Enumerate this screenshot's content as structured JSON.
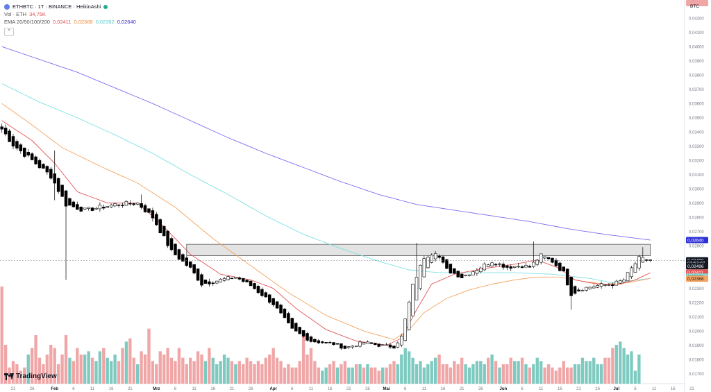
{
  "header": {
    "symbol_line": "ETHBTC · 1T · BINANCE · HeikinAshi",
    "vol_label": "Vol · ETH",
    "vol_value": "34,75K",
    "ema_label": "EMA 20/50/100/200",
    "ema_values": [
      "0,02411",
      "0,02368",
      "0,02382",
      "0,02640"
    ],
    "collapse_glyph": "^",
    "currency": "BTC",
    "logo_text": "TradingView"
  },
  "colors": {
    "up": "#ffffff",
    "down": "#000000",
    "candle_border": "#000000",
    "vol_up": "#7ecac0",
    "vol_down": "#f0a6a6",
    "ema20": "#e45454",
    "ema50": "#f4a460",
    "ema100": "#7fe0e0",
    "ema200": "#7b6ff0",
    "box_fill": "#d9d9d9",
    "text_red": "#e04a4a"
  },
  "chart_data": {
    "type": "candlestick",
    "price_axis": {
      "min": 0.0163,
      "max": 0.0425
    },
    "y_ticks": [
      "0,04200",
      "0,04100",
      "0,04000",
      "0,03900",
      "0,03800",
      "0,03700",
      "0,03600",
      "0,03500",
      "0,03400",
      "0,03300",
      "0,03200",
      "0,03100",
      "0,03000",
      "0,02900",
      "0,02800",
      "0,02700",
      "0,02600",
      "0,02500",
      "0,02400",
      "0,02300",
      "0,02200",
      "0,02100",
      "0,02000",
      "0,01900",
      "0,01800",
      "0,01700"
    ],
    "x_ticks": [
      {
        "label": "21",
        "i": 3
      },
      {
        "label": "26",
        "i": 8
      },
      {
        "label": "Feb",
        "i": 14
      },
      {
        "label": "6",
        "i": 19
      },
      {
        "label": "11",
        "i": 24
      },
      {
        "label": "16",
        "i": 29
      },
      {
        "label": "21",
        "i": 34
      },
      {
        "label": "Mrz",
        "i": 41
      },
      {
        "label": "6",
        "i": 46
      },
      {
        "label": "11",
        "i": 51
      },
      {
        "label": "16",
        "i": 56
      },
      {
        "label": "21",
        "i": 61
      },
      {
        "label": "26",
        "i": 66
      },
      {
        "label": "Apr",
        "i": 72
      },
      {
        "label": "6",
        "i": 77
      },
      {
        "label": "11",
        "i": 82
      },
      {
        "label": "16",
        "i": 87
      },
      {
        "label": "21",
        "i": 92
      },
      {
        "label": "26",
        "i": 97
      },
      {
        "label": "Mai",
        "i": 102
      },
      {
        "label": "6",
        "i": 107
      },
      {
        "label": "11",
        "i": 112
      },
      {
        "label": "16",
        "i": 117
      },
      {
        "label": "21",
        "i": 122
      },
      {
        "label": "26",
        "i": 127
      },
      {
        "label": "Jun",
        "i": 133
      },
      {
        "label": "6",
        "i": 138
      },
      {
        "label": "11",
        "i": 143
      },
      {
        "label": "16",
        "i": 148
      },
      {
        "label": "21",
        "i": 153
      },
      {
        "label": "26",
        "i": 158
      },
      {
        "label": "Jul",
        "i": 163
      },
      {
        "label": "6",
        "i": 168
      },
      {
        "label": "11",
        "i": 173
      },
      {
        "label": "16",
        "i": 178
      },
      {
        "label": "21",
        "i": 183
      }
    ],
    "close_anchors": [
      [
        0,
        0.0342
      ],
      [
        3,
        0.0331
      ],
      [
        8,
        0.032
      ],
      [
        13,
        0.0309
      ],
      [
        17,
        0.0289
      ],
      [
        22,
        0.0285
      ],
      [
        30,
        0.0289
      ],
      [
        36,
        0.029
      ],
      [
        40,
        0.028
      ],
      [
        45,
        0.0256
      ],
      [
        50,
        0.0244
      ],
      [
        53,
        0.0233
      ],
      [
        58,
        0.0236
      ],
      [
        62,
        0.0238
      ],
      [
        66,
        0.0232
      ],
      [
        72,
        0.0219
      ],
      [
        77,
        0.0201
      ],
      [
        82,
        0.0193
      ],
      [
        88,
        0.0191
      ],
      [
        91,
        0.0188
      ],
      [
        96,
        0.0192
      ],
      [
        100,
        0.019
      ],
      [
        104,
        0.0189
      ],
      [
        106,
        0.0196
      ],
      [
        109,
        0.0232
      ],
      [
        112,
        0.0252
      ],
      [
        115,
        0.0256
      ],
      [
        118,
        0.0243
      ],
      [
        122,
        0.0238
      ],
      [
        127,
        0.0245
      ],
      [
        130,
        0.0249
      ],
      [
        134,
        0.0245
      ],
      [
        138,
        0.0246
      ],
      [
        140,
        0.0245
      ],
      [
        143,
        0.0253
      ],
      [
        146,
        0.0249
      ],
      [
        149,
        0.0241
      ],
      [
        151,
        0.0226
      ],
      [
        154,
        0.023
      ],
      [
        158,
        0.0232
      ],
      [
        162,
        0.0233
      ],
      [
        165,
        0.0236
      ],
      [
        167,
        0.0244
      ],
      [
        169,
        0.0251
      ],
      [
        172,
        0.025
      ]
    ],
    "spikes": [
      {
        "i": 14,
        "high": 0.0327,
        "low": 0.0292
      },
      {
        "i": 17,
        "low": 0.0236
      },
      {
        "i": 37,
        "high": 0.0296
      },
      {
        "i": 110,
        "high": 0.0262
      },
      {
        "i": 141,
        "high": 0.0263
      },
      {
        "i": 151,
        "low": 0.0215
      },
      {
        "i": 170,
        "high": 0.0259
      }
    ],
    "volume": [
      60,
      24,
      10,
      14,
      12,
      8,
      10,
      18,
      22,
      30,
      16,
      12,
      18,
      24,
      22,
      12,
      18,
      30,
      16,
      14,
      22,
      18,
      18,
      20,
      16,
      14,
      20,
      22,
      16,
      14,
      18,
      14,
      22,
      26,
      28,
      16,
      12,
      20,
      18,
      34,
      14,
      12,
      20,
      18,
      22,
      16,
      14,
      22,
      16,
      12,
      16,
      14,
      20,
      18,
      14,
      22,
      16,
      12,
      14,
      18,
      16,
      14,
      12,
      14,
      12,
      16,
      14,
      12,
      14,
      12,
      16,
      18,
      22,
      16,
      14,
      10,
      12,
      10,
      10,
      14,
      30,
      18,
      22,
      14,
      10,
      8,
      10,
      12,
      14,
      10,
      12,
      14,
      10,
      10,
      12,
      12,
      10,
      12,
      10,
      10,
      8,
      10,
      10,
      12,
      14,
      12,
      18,
      22,
      20,
      16,
      12,
      14,
      10,
      12,
      14,
      16,
      18,
      12,
      12,
      10,
      14,
      12,
      16,
      12,
      10,
      12,
      14,
      14,
      12,
      16,
      18,
      14,
      10,
      12,
      12,
      16,
      14,
      14,
      16,
      12,
      10,
      12,
      16,
      14,
      10,
      12,
      10,
      8,
      10,
      14,
      10,
      10,
      12,
      12,
      16,
      14,
      14,
      16,
      12,
      12,
      16,
      16,
      22,
      24,
      26,
      22,
      18,
      20,
      8,
      18
    ],
    "ema200": [
      [
        0,
        0.04
      ],
      [
        10,
        0.0391
      ],
      [
        20,
        0.0382
      ],
      [
        30,
        0.0371
      ],
      [
        40,
        0.036
      ],
      [
        50,
        0.0348
      ],
      [
        60,
        0.0336
      ],
      [
        70,
        0.0325
      ],
      [
        80,
        0.0315
      ],
      [
        90,
        0.0305
      ],
      [
        100,
        0.0296
      ],
      [
        110,
        0.0289
      ],
      [
        120,
        0.0285
      ],
      [
        130,
        0.0281
      ],
      [
        140,
        0.0277
      ],
      [
        150,
        0.0272
      ],
      [
        160,
        0.0268
      ],
      [
        172,
        0.0264
      ]
    ],
    "ema100": [
      [
        0,
        0.0374
      ],
      [
        10,
        0.0361
      ],
      [
        20,
        0.035
      ],
      [
        30,
        0.0338
      ],
      [
        40,
        0.0325
      ],
      [
        50,
        0.031
      ],
      [
        60,
        0.0296
      ],
      [
        70,
        0.0281
      ],
      [
        80,
        0.0268
      ],
      [
        90,
        0.0258
      ],
      [
        100,
        0.0249
      ],
      [
        108,
        0.0243
      ],
      [
        116,
        0.0241
      ],
      [
        126,
        0.0241
      ],
      [
        136,
        0.0241
      ],
      [
        146,
        0.024
      ],
      [
        156,
        0.0237
      ],
      [
        162,
        0.0234
      ],
      [
        172,
        0.0237
      ]
    ],
    "ema50": [
      [
        0,
        0.036
      ],
      [
        8,
        0.0345
      ],
      [
        16,
        0.0329
      ],
      [
        26,
        0.0316
      ],
      [
        36,
        0.0304
      ],
      [
        46,
        0.0287
      ],
      [
        56,
        0.0265
      ],
      [
        66,
        0.0246
      ],
      [
        76,
        0.0227
      ],
      [
        86,
        0.0211
      ],
      [
        96,
        0.02
      ],
      [
        104,
        0.0194
      ],
      [
        108,
        0.0201
      ],
      [
        112,
        0.0213
      ],
      [
        118,
        0.0223
      ],
      [
        124,
        0.0229
      ],
      [
        130,
        0.0233
      ],
      [
        136,
        0.0236
      ],
      [
        142,
        0.0238
      ],
      [
        148,
        0.0238
      ],
      [
        154,
        0.0235
      ],
      [
        160,
        0.0233
      ],
      [
        166,
        0.0234
      ],
      [
        172,
        0.0237
      ]
    ],
    "ema20": [
      [
        0,
        0.0348
      ],
      [
        8,
        0.0334
      ],
      [
        14,
        0.0318
      ],
      [
        20,
        0.0298
      ],
      [
        28,
        0.029
      ],
      [
        36,
        0.029
      ],
      [
        42,
        0.0276
      ],
      [
        50,
        0.0254
      ],
      [
        58,
        0.024
      ],
      [
        66,
        0.0236
      ],
      [
        72,
        0.023
      ],
      [
        78,
        0.0216
      ],
      [
        86,
        0.0201
      ],
      [
        94,
        0.0193
      ],
      [
        102,
        0.019
      ],
      [
        106,
        0.0195
      ],
      [
        110,
        0.0215
      ],
      [
        114,
        0.0233
      ],
      [
        120,
        0.024
      ],
      [
        128,
        0.0244
      ],
      [
        136,
        0.0247
      ],
      [
        142,
        0.025
      ],
      [
        148,
        0.0244
      ],
      [
        152,
        0.0236
      ],
      [
        158,
        0.0233
      ],
      [
        164,
        0.0233
      ],
      [
        168,
        0.0236
      ],
      [
        172,
        0.0241
      ]
    ],
    "resistance_box": {
      "i_start": 49,
      "i_end": 172,
      "top": 0.0261,
      "bottom": 0.0253
    },
    "current_price_line": 0.02496,
    "price_labels": [
      {
        "text": "0,02640",
        "value": 0.0264,
        "bg": "#2f2fd8",
        "fg": "#ffffff"
      },
      {
        "text": "0,02498",
        "value": 0.02498,
        "bg": "#131722",
        "fg": "#ffffff"
      },
      {
        "text": "03:53:07",
        "value": 0.02478,
        "bg": "#131722",
        "fg": "#ffffff"
      },
      {
        "text": "0,02496",
        "value": 0.02456,
        "bg": "#131722",
        "fg": "#ffffff"
      },
      {
        "text": "0,02411",
        "value": 0.02411,
        "bg": "#e45454",
        "fg": "#ffffff"
      },
      {
        "text": "0,02382",
        "value": 0.02382,
        "bg": "#7fe0e0",
        "fg": "#131722"
      },
      {
        "text": "0,02368",
        "value": 0.02368,
        "bg": "#f4a460",
        "fg": "#131722"
      }
    ],
    "volume_label": {
      "text": "34,75K",
      "bg": "#f0a6a6",
      "fg": "#131722"
    }
  }
}
